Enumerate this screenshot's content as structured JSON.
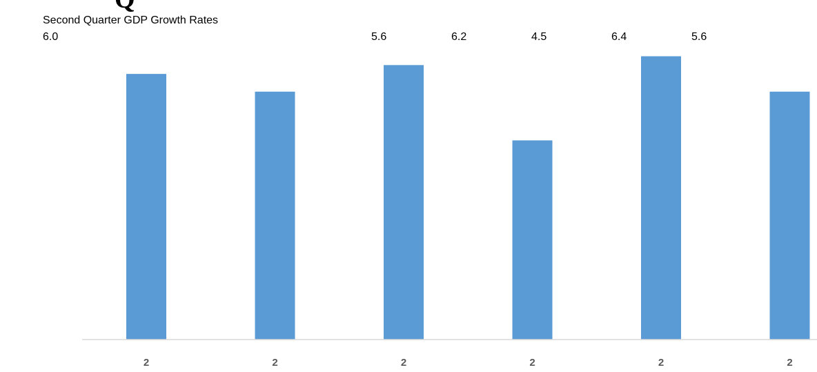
{
  "header": {
    "glyph": "Q"
  },
  "colors": {
    "bar": "#5b9bd5",
    "axis": "#d9d9d9",
    "tick_text": "#595959"
  },
  "chart_data": {
    "type": "bar",
    "title": "Second Quarter GDP Growth Rates",
    "xlabel": "",
    "ylabel": "",
    "categories": [
      "2",
      "2",
      "2",
      "2",
      "2",
      "2"
    ],
    "values": [
      6.0,
      5.6,
      6.2,
      4.5,
      6.4,
      5.6
    ],
    "value_labels": [
      "6.0",
      "5.6",
      "6.2",
      "4.5",
      "6.4",
      "5.6"
    ],
    "ylim": [
      0,
      7.0
    ],
    "grid": false,
    "legend": "none"
  }
}
